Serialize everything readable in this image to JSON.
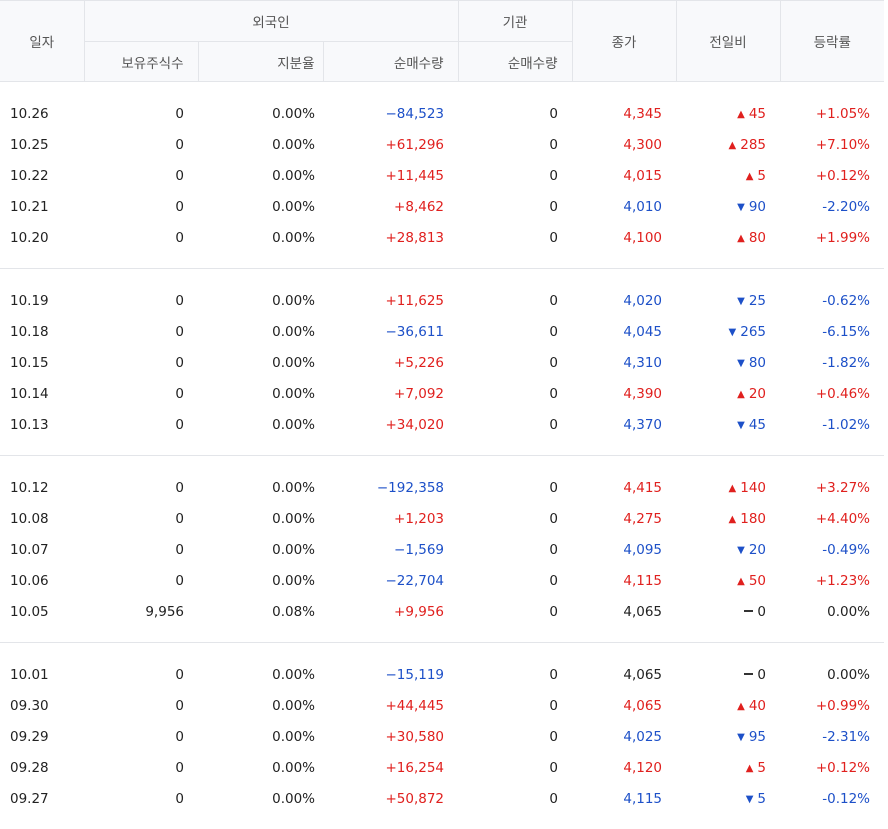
{
  "header": {
    "date": "일자",
    "foreign": "외국인",
    "institution": "기관",
    "close": "종가",
    "diff": "전일비",
    "rate": "등락률",
    "holdings": "보유주식수",
    "ratio": "지분율",
    "foreign_net": "순매수량",
    "inst_net": "순매수량"
  },
  "groups": [
    [
      {
        "date": "10.26",
        "holdings": "0",
        "ratio": "0.00%",
        "foreign_net": "−84,523",
        "inst_net": "0",
        "close": "4,345",
        "diff": "45",
        "rate": "+1.05%",
        "dir": "up",
        "net_dir": "down"
      },
      {
        "date": "10.25",
        "holdings": "0",
        "ratio": "0.00%",
        "foreign_net": "+61,296",
        "inst_net": "0",
        "close": "4,300",
        "diff": "285",
        "rate": "+7.10%",
        "dir": "up",
        "net_dir": "up"
      },
      {
        "date": "10.22",
        "holdings": "0",
        "ratio": "0.00%",
        "foreign_net": "+11,445",
        "inst_net": "0",
        "close": "4,015",
        "diff": "5",
        "rate": "+0.12%",
        "dir": "up",
        "net_dir": "up"
      },
      {
        "date": "10.21",
        "holdings": "0",
        "ratio": "0.00%",
        "foreign_net": "+8,462",
        "inst_net": "0",
        "close": "4,010",
        "diff": "90",
        "rate": "-2.20%",
        "dir": "down",
        "net_dir": "up"
      },
      {
        "date": "10.20",
        "holdings": "0",
        "ratio": "0.00%",
        "foreign_net": "+28,813",
        "inst_net": "0",
        "close": "4,100",
        "diff": "80",
        "rate": "+1.99%",
        "dir": "up",
        "net_dir": "up"
      }
    ],
    [
      {
        "date": "10.19",
        "holdings": "0",
        "ratio": "0.00%",
        "foreign_net": "+11,625",
        "inst_net": "0",
        "close": "4,020",
        "diff": "25",
        "rate": "-0.62%",
        "dir": "down",
        "net_dir": "up"
      },
      {
        "date": "10.18",
        "holdings": "0",
        "ratio": "0.00%",
        "foreign_net": "−36,611",
        "inst_net": "0",
        "close": "4,045",
        "diff": "265",
        "rate": "-6.15%",
        "dir": "down",
        "net_dir": "down"
      },
      {
        "date": "10.15",
        "holdings": "0",
        "ratio": "0.00%",
        "foreign_net": "+5,226",
        "inst_net": "0",
        "close": "4,310",
        "diff": "80",
        "rate": "-1.82%",
        "dir": "down",
        "net_dir": "up"
      },
      {
        "date": "10.14",
        "holdings": "0",
        "ratio": "0.00%",
        "foreign_net": "+7,092",
        "inst_net": "0",
        "close": "4,390",
        "diff": "20",
        "rate": "+0.46%",
        "dir": "up",
        "net_dir": "up"
      },
      {
        "date": "10.13",
        "holdings": "0",
        "ratio": "0.00%",
        "foreign_net": "+34,020",
        "inst_net": "0",
        "close": "4,370",
        "diff": "45",
        "rate": "-1.02%",
        "dir": "down",
        "net_dir": "up"
      }
    ],
    [
      {
        "date": "10.12",
        "holdings": "0",
        "ratio": "0.00%",
        "foreign_net": "−192,358",
        "inst_net": "0",
        "close": "4,415",
        "diff": "140",
        "rate": "+3.27%",
        "dir": "up",
        "net_dir": "down"
      },
      {
        "date": "10.08",
        "holdings": "0",
        "ratio": "0.00%",
        "foreign_net": "+1,203",
        "inst_net": "0",
        "close": "4,275",
        "diff": "180",
        "rate": "+4.40%",
        "dir": "up",
        "net_dir": "up"
      },
      {
        "date": "10.07",
        "holdings": "0",
        "ratio": "0.00%",
        "foreign_net": "−1,569",
        "inst_net": "0",
        "close": "4,095",
        "diff": "20",
        "rate": "-0.49%",
        "dir": "down",
        "net_dir": "down"
      },
      {
        "date": "10.06",
        "holdings": "0",
        "ratio": "0.00%",
        "foreign_net": "−22,704",
        "inst_net": "0",
        "close": "4,115",
        "diff": "50",
        "rate": "+1.23%",
        "dir": "up",
        "net_dir": "down"
      },
      {
        "date": "10.05",
        "holdings": "9,956",
        "ratio": "0.08%",
        "foreign_net": "+9,956",
        "inst_net": "0",
        "close": "4,065",
        "diff": "0",
        "rate": "0.00%",
        "dir": "flat",
        "net_dir": "up"
      }
    ],
    [
      {
        "date": "10.01",
        "holdings": "0",
        "ratio": "0.00%",
        "foreign_net": "−15,119",
        "inst_net": "0",
        "close": "4,065",
        "diff": "0",
        "rate": "0.00%",
        "dir": "flat",
        "net_dir": "down"
      },
      {
        "date": "09.30",
        "holdings": "0",
        "ratio": "0.00%",
        "foreign_net": "+44,445",
        "inst_net": "0",
        "close": "4,065",
        "diff": "40",
        "rate": "+0.99%",
        "dir": "up",
        "net_dir": "up"
      },
      {
        "date": "09.29",
        "holdings": "0",
        "ratio": "0.00%",
        "foreign_net": "+30,580",
        "inst_net": "0",
        "close": "4,025",
        "diff": "95",
        "rate": "-2.31%",
        "dir": "down",
        "net_dir": "up"
      },
      {
        "date": "09.28",
        "holdings": "0",
        "ratio": "0.00%",
        "foreign_net": "+16,254",
        "inst_net": "0",
        "close": "4,120",
        "diff": "5",
        "rate": "+0.12%",
        "dir": "up",
        "net_dir": "up"
      },
      {
        "date": "09.27",
        "holdings": "0",
        "ratio": "0.00%",
        "foreign_net": "+50,872",
        "inst_net": "0",
        "close": "4,115",
        "diff": "5",
        "rate": "-0.12%",
        "dir": "down",
        "net_dir": "up"
      }
    ]
  ],
  "colors": {
    "up": "#e0201e",
    "down": "#1d50c8",
    "flat": "#222222",
    "header_bg": "#f8f9fb",
    "border": "#e3e5e9"
  },
  "icons": {
    "up": "triangle-up-icon",
    "down": "triangle-down-icon",
    "flat": "dash-icon"
  }
}
